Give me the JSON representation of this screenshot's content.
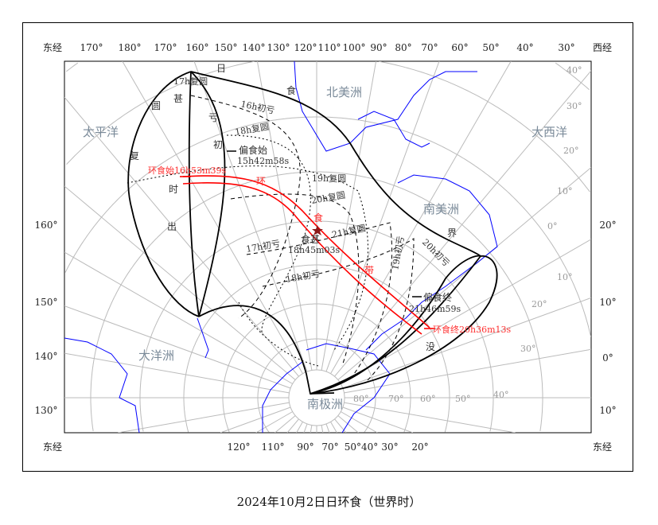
{
  "title": "2024年10月2日日环食（世界时）",
  "top_lon": [
    "东经",
    "170°",
    "180°",
    "170°",
    "160°",
    "150°",
    "140°",
    "130°",
    "120°",
    "110°",
    "100°",
    "90°",
    "80°",
    "70°",
    "60°",
    "50°",
    "40°",
    "30°",
    "西经"
  ],
  "bottom_lon": [
    "东经",
    "120°",
    "110°",
    "90°",
    "70°",
    "50°40°",
    "30°",
    "20°",
    "东经"
  ],
  "left_lat": [
    "160°",
    "150°",
    "140°",
    "130°"
  ],
  "right_lat": [
    "20°",
    "10°",
    "0°",
    "10°"
  ],
  "inner_lat": [
    "40°",
    "30°",
    "20°",
    "10°",
    "0°",
    "10°",
    "20°",
    "30°",
    "40°",
    "50°",
    "60°",
    "70°",
    "80°"
  ],
  "continents": [
    "北美洲",
    "太平洋",
    "大西洋",
    "南美洲",
    "大洋洲",
    "南极洲"
  ],
  "events": {
    "partial_start": "偏食始",
    "partial_start_time": "15h42m58s",
    "annular_start": "环食始16h53m39s",
    "greatest": "食甚",
    "greatest_time": "18h45m03s",
    "annular_end": "环食终20h36m13s",
    "partial_end": "偏食终",
    "partial_end_time": "21h46m59s"
  },
  "contours": [
    "17h复圆",
    "16h初亏",
    "18h复圆",
    "19h复圆",
    "20h复圆",
    "21h复圆",
    "17h初亏",
    "18h初亏",
    "19h初亏",
    "20h初亏"
  ],
  "curve_labels": [
    "日",
    "食",
    "界",
    "环",
    "食",
    "带",
    "复",
    "圆",
    "甚",
    "时",
    "出",
    "初",
    "亏",
    "没"
  ],
  "colors": {
    "path": "#ff0000",
    "grid": "#bbbbbb",
    "coast": "#0000ff",
    "boundary": "#000000"
  }
}
